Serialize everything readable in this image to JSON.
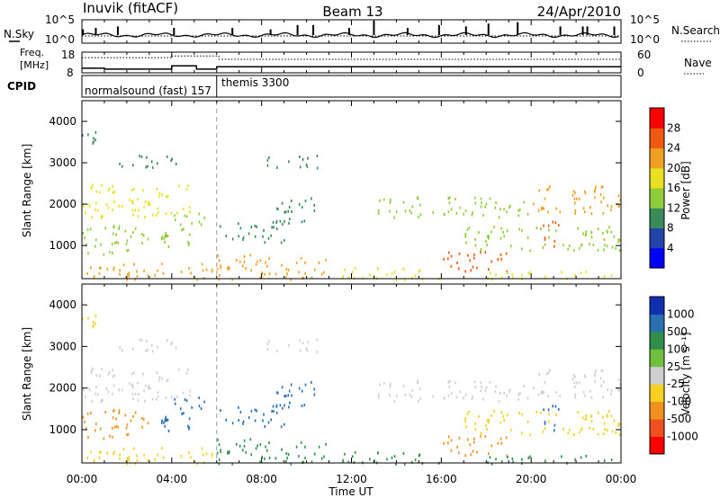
{
  "header": {
    "station": "Inuvik (fitACF)",
    "beam": "Beam 13",
    "date": "24/Apr/2010"
  },
  "noise_panel": {
    "left_label": "N.Sky",
    "right_label": "N.Search",
    "left_ticks": [
      "10^5",
      "10^0"
    ],
    "right_ticks": [
      "10^5",
      "10^0"
    ],
    "spikes": [
      {
        "x": 0.05,
        "v": 0.4
      },
      {
        "x": 0.62,
        "v": 0.5
      },
      {
        "x": 1.6,
        "v": 0.6
      },
      {
        "x": 4.1,
        "v": 0.5
      },
      {
        "x": 6.7,
        "v": 0.5
      },
      {
        "x": 8.4,
        "v": 0.4
      },
      {
        "x": 9.6,
        "v": 0.7
      },
      {
        "x": 10.3,
        "v": 0.7
      },
      {
        "x": 11.9,
        "v": 0.5
      },
      {
        "x": 13.0,
        "v": 1.0
      },
      {
        "x": 14.5,
        "v": 0.5
      },
      {
        "x": 15.9,
        "v": 0.7
      },
      {
        "x": 17.1,
        "v": 0.6
      },
      {
        "x": 18.1,
        "v": 0.8
      },
      {
        "x": 19.4,
        "v": 0.9
      },
      {
        "x": 21.3,
        "v": 0.6
      },
      {
        "x": 22.3,
        "v": 0.6
      },
      {
        "x": 22.5,
        "v": 0.6
      },
      {
        "x": 23.7,
        "v": 0.6
      }
    ]
  },
  "freq_panel": {
    "left_label_1": "Freq.",
    "left_label_2": "[MHz]",
    "right_label": "Nave",
    "left_ticks": [
      "18",
      "8"
    ],
    "right_ticks": [
      "60",
      "0"
    ],
    "freq_steps": [
      {
        "t0": 0,
        "t1": 1.0,
        "f": 10.2
      },
      {
        "t0": 1.0,
        "t1": 4.0,
        "f": 9.8
      },
      {
        "t0": 4.0,
        "t1": 5.1,
        "f": 11.4
      },
      {
        "t0": 5.1,
        "t1": 6.0,
        "f": 9.8
      },
      {
        "t0": 6.0,
        "t1": 24,
        "f": 10.9
      }
    ],
    "nave_steps": [
      {
        "t0": 0,
        "t1": 4.0,
        "n": 44
      },
      {
        "t0": 4.0,
        "t1": 6.1,
        "n": 49
      },
      {
        "t0": 6.1,
        "t1": 24,
        "n": 39
      }
    ]
  },
  "cpid": {
    "label": "CPID",
    "mode1": "normalsound (fast) 157",
    "mode2": "themis 3300",
    "switch_time": 6.0
  },
  "power_panel": {
    "ylabel": "Slant Range [km]",
    "colorbar_label": "Power [dB]",
    "colorbar_ticks": [
      "4",
      "8",
      "12",
      "16",
      "20",
      "24",
      "28"
    ],
    "colors": [
      "#0000ff",
      "#2244aa",
      "#3a8a5a",
      "#8fcc3a",
      "#e8e020",
      "#f0a020",
      "#f05a10",
      "#ff0000"
    ]
  },
  "velocity_panel": {
    "ylabel": "Slant Range [km]",
    "colorbar_label": "Velocity [m s⁻¹]",
    "colorbar_ticks": [
      "1000",
      "500",
      "100",
      "25",
      "-25",
      "-100",
      "-500",
      "-1000"
    ],
    "colors": [
      "#1030b0",
      "#2a70b0",
      "#2f8f4a",
      "#70c040",
      "#cfcfcf",
      "#f5d020",
      "#f09020",
      "#f05020",
      "#ff0000"
    ]
  },
  "chart_data": {
    "type": "heatmap",
    "title": "Inuvik (fitACF)",
    "xlabel": "Time UT",
    "x_ticks": [
      "00:00",
      "04:00",
      "08:00",
      "12:00",
      "16:00",
      "20:00",
      "00:00"
    ],
    "xlim": [
      0,
      24
    ],
    "ylabel": "Slant Range [km]",
    "y_ticks": [
      "1000",
      "2000",
      "3000",
      "4000"
    ],
    "ylim": [
      200,
      4500
    ],
    "regions": [
      {
        "t0": 0.0,
        "t1": 5.0,
        "r0": 1700,
        "r1": 2500,
        "power": 16,
        "vel": -25
      },
      {
        "t0": 0.0,
        "t1": 3.0,
        "r0": 800,
        "r1": 1500,
        "power": 14,
        "vel": -500
      },
      {
        "t0": 0.0,
        "t1": 6.0,
        "r0": 200,
        "r1": 600,
        "power": 22,
        "vel": -100
      },
      {
        "t0": 1.5,
        "t1": 4.5,
        "r0": 2900,
        "r1": 3200,
        "power": 8,
        "vel": -25
      },
      {
        "t0": 0.0,
        "t1": 1.0,
        "r0": 3500,
        "r1": 3900,
        "power": 10,
        "vel": -100
      },
      {
        "t0": 3.5,
        "t1": 5.5,
        "r0": 1000,
        "r1": 1800,
        "power": 12,
        "vel": 500
      },
      {
        "t0": 6.0,
        "t1": 11.0,
        "r0": 200,
        "r1": 800,
        "power": 20,
        "vel": 100
      },
      {
        "t0": 6.0,
        "t1": 9.0,
        "r0": 1100,
        "r1": 1600,
        "power": 8,
        "vel": 500
      },
      {
        "t0": 8.5,
        "t1": 10.5,
        "r0": 1500,
        "r1": 2200,
        "power": 10,
        "vel": 500
      },
      {
        "t0": 8.0,
        "t1": 10.5,
        "r0": 2900,
        "r1": 3200,
        "power": 8,
        "vel": -25
      },
      {
        "t0": 11.0,
        "t1": 16.0,
        "r0": 200,
        "r1": 500,
        "power": 16,
        "vel": 100
      },
      {
        "t0": 13.0,
        "t1": 20.0,
        "r0": 1700,
        "r1": 2200,
        "power": 12,
        "vel": -25
      },
      {
        "t0": 16.0,
        "t1": 19.0,
        "r0": 400,
        "r1": 900,
        "power": 24,
        "vel": -500
      },
      {
        "t0": 17.0,
        "t1": 24.0,
        "r0": 900,
        "r1": 1500,
        "power": 14,
        "vel": -100
      },
      {
        "t0": 20.0,
        "t1": 24.0,
        "r0": 1800,
        "r1": 2500,
        "power": 20,
        "vel": -25
      },
      {
        "t0": 20.5,
        "t1": 21.2,
        "r0": 1000,
        "r1": 1800,
        "power": 24,
        "vel": 500
      },
      {
        "t0": 18.0,
        "t1": 24.0,
        "r0": 200,
        "r1": 400,
        "power": 16,
        "vel": 100
      }
    ]
  }
}
